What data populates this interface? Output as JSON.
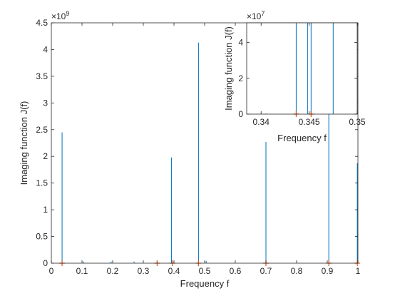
{
  "chart_data": [
    {
      "type": "stem",
      "xlabel": "Frequency f",
      "ylabel": "Imaging function J(f)",
      "xlim": [
        0,
        1
      ],
      "ylim": [
        0,
        4.5
      ],
      "y_exponent_base": "10",
      "y_exponent_power": "9",
      "xticks": [
        0,
        0.1,
        0.2,
        0.3,
        0.4,
        0.5,
        0.6,
        0.7,
        0.8,
        0.9,
        1
      ],
      "xtick_labels": [
        "0",
        "0.1",
        "0.2",
        "0.3",
        "0.4",
        "0.5",
        "0.6",
        "0.7",
        "0.8",
        "0.9",
        "1"
      ],
      "yticks": [
        0,
        0.5,
        1,
        1.5,
        2,
        2.5,
        3,
        3.5,
        4,
        4.5
      ],
      "ytick_labels": [
        "0",
        "0.5",
        "1",
        "1.5",
        "2",
        "2.5",
        "3",
        "3.5",
        "4",
        "4.5"
      ],
      "grid": false,
      "series": [
        {
          "style": "stem",
          "color": "#0072BD",
          "x": [
            0.035,
            0.105,
            0.195,
            0.27,
            0.345,
            0.392,
            0.48,
            0.505,
            0.7,
            0.905,
            0.998
          ],
          "y": [
            2.45,
            0.03,
            0.03,
            0.03,
            0.04,
            1.98,
            4.13,
            0.04,
            2.27,
            4.5,
            1.87
          ]
        },
        {
          "style": "markers",
          "marker": "+",
          "color": "#D95319",
          "x": [
            0.035,
            0.345,
            0.395,
            0.48,
            0.7,
            0.905,
            0.998
          ],
          "y": [
            0,
            0,
            0,
            0,
            0,
            0,
            0
          ]
        }
      ]
    },
    {
      "type": "stem",
      "xlabel": "Frequency f",
      "ylabel": "Imaging function J(f)",
      "xlim": [
        0.3385,
        0.35
      ],
      "ylim": [
        0,
        5.1
      ],
      "y_exponent_base": "10",
      "y_exponent_power": "7",
      "xticks": [
        0.34,
        0.345,
        0.35
      ],
      "xtick_labels": [
        "0.34",
        "0.345",
        "0.35"
      ],
      "yticks": [
        0,
        2,
        4
      ],
      "ytick_labels": [
        "0",
        "2",
        "4"
      ],
      "grid": false,
      "series": [
        {
          "style": "stem",
          "color": "#0072BD",
          "x": [
            0.3395,
            0.3405,
            0.3419,
            0.34365,
            0.34485,
            0.3452,
            0.3465,
            0.3475,
            0.3499
          ],
          "y": [
            0.02,
            0.03,
            0.02,
            5.1,
            5.1,
            5.1,
            0.02,
            5.1,
            0.03
          ]
        },
        {
          "style": "markers",
          "marker": "+",
          "color": "#D95319",
          "x": [
            0.34365,
            0.3452
          ],
          "y": [
            0,
            0
          ]
        }
      ]
    }
  ]
}
